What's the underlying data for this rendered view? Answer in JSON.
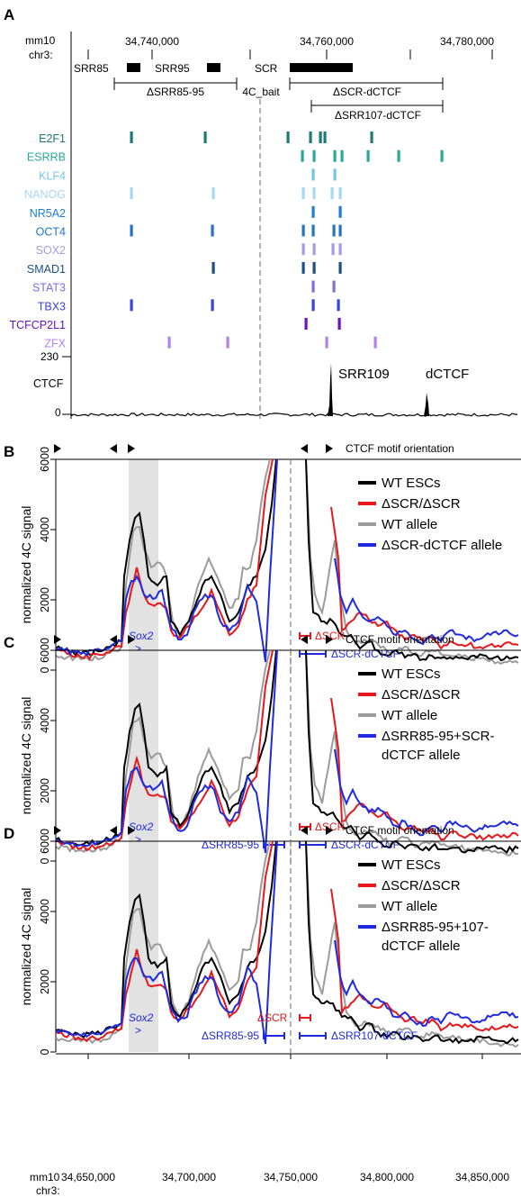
{
  "figure": {
    "panel_a": {
      "letter": "A",
      "genome_label": "mm10",
      "chrom_label": "chr3:",
      "coords": [
        "34,740,000",
        "34,760,000",
        "34,780,000"
      ],
      "elements": [
        "SRR85",
        "SRR95",
        "SCR"
      ],
      "deletions": {
        "d_srr85_95": "ΔSRR85-95",
        "bait": "4C_bait",
        "d_scr_dctcf": "ΔSCR-dCTCF",
        "d_srr107": "ΔSRR107-dCTCF"
      },
      "tf_tracks": [
        {
          "name": "E2F1",
          "color": "#1c7b78"
        },
        {
          "name": "ESRRB",
          "color": "#2aa79d"
        },
        {
          "name": "KLF4",
          "color": "#78c3ec"
        },
        {
          "name": "NANOG",
          "color": "#a8d6f5"
        },
        {
          "name": "NR5A2",
          "color": "#1f7fd0"
        },
        {
          "name": "OCT4",
          "color": "#2273c8"
        },
        {
          "name": "SOX2",
          "color": "#a49be8"
        },
        {
          "name": "SMAD1",
          "color": "#1d4e88"
        },
        {
          "name": "STAT3",
          "color": "#7d6ee0"
        },
        {
          "name": "TBX3",
          "color": "#3a43d8"
        },
        {
          "name": "TCFCP2L1",
          "color": "#6a11c4"
        },
        {
          "name": "ZFX",
          "color": "#b57ff0"
        }
      ],
      "ctcf": {
        "label": "CTCF",
        "ymax": "230",
        "ymin": "0",
        "peak1": "SRR109",
        "peak2": "dCTCF"
      }
    },
    "panels_4c": [
      {
        "letter": "B",
        "motif_label": "CTCF motif orientation",
        "ylabel": "normalized 4C signal",
        "yticks": [
          "0",
          "2000",
          "4000",
          "6000"
        ],
        "legend": [
          "WT ESCs",
          "ΔSCR/ΔSCR",
          "WT allele",
          "ΔSCR-dCTCF allele"
        ],
        "gene": "Sox2",
        "del_red": "ΔSCR",
        "del_blue_right": "ΔSCR-dCTCF",
        "del_blue_left": ""
      },
      {
        "letter": "C",
        "motif_label": "CTCF motif orientation",
        "ylabel": "normalized 4C signal",
        "yticks": [
          "0",
          "2000",
          "4000",
          "6000"
        ],
        "legend": [
          "WT ESCs",
          "ΔSCR/ΔSCR",
          "WT allele",
          "ΔSRR85-95+SCR-",
          "dCTCF allele"
        ],
        "gene": "Sox2",
        "del_red": "ΔSCR",
        "del_blue_right": "ΔSCR-dCTCF",
        "del_blue_left": "ΔSRR85-95"
      },
      {
        "letter": "D",
        "motif_label": "CTCF motif orientation",
        "ylabel": "normalized 4C signal",
        "yticks": [
          "0",
          "2000",
          "4000",
          "6000"
        ],
        "legend": [
          "WT ESCs",
          "ΔSCR/ΔSCR",
          "WT allele",
          "ΔSRR85-95+107-",
          "dCTCF allele"
        ],
        "gene": "Sox2",
        "del_red": "ΔSCR",
        "del_blue_right": "ΔSRR107-dCTCF",
        "del_blue_left": "ΔSRR85-95"
      }
    ],
    "bottom_axis": {
      "genome_label": "mm10",
      "chrom_label": "chr3:",
      "ticks": [
        "34,650,000",
        "34,700,000",
        "34,750,000",
        "34,800,000",
        "34,850,000"
      ]
    },
    "colors": {
      "wt_escs": "#000000",
      "dscr": "#e8171b",
      "wt_allele": "#9b9b9b",
      "mutant_allele": "#1f2be0",
      "shade": "#e2e2e2"
    }
  }
}
